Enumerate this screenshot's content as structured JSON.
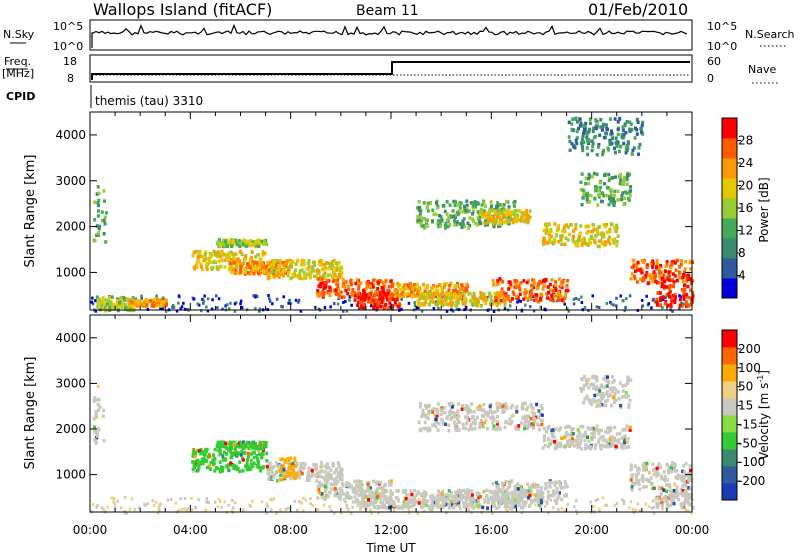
{
  "header": {
    "station": "Wallops Island (fitACF)",
    "beam": "Beam 11",
    "date": "01/Feb/2010"
  },
  "top_panels": {
    "nsky_label": "N.Sky",
    "nsky_ticks": [
      "10^5",
      "10^0"
    ],
    "nsearch_label": "N.Search",
    "nsearch_ticks": [
      "10^5",
      "10^0"
    ],
    "freq_label": "Freq.",
    "freq_unit": "[MHz]",
    "freq_ticks": [
      "18",
      "8"
    ],
    "nave_label": "Nave",
    "nave_ticks": [
      "60",
      "0"
    ],
    "cpid_label": "CPID",
    "cpid_value": "themis (tau) 3310"
  },
  "chart_data": [
    {
      "type": "heatmap",
      "name": "power",
      "ylabel": "Slant Range [km]",
      "yticks": [
        "4000",
        "3000",
        "2000",
        "1000"
      ],
      "ylim": [
        180,
        4500
      ],
      "colorbar": {
        "label": "Power [dB]",
        "ticks": [
          "28",
          "24",
          "20",
          "16",
          "12",
          "8",
          "4"
        ],
        "colors": [
          "#0000dd",
          "#2d5aa0",
          "#3a8a70",
          "#44aa55",
          "#99cc33",
          "#e6c800",
          "#ff9900",
          "#ff5a00",
          "#ff0000"
        ]
      },
      "regions": [
        {
          "t": [
            0.1,
            0.6
          ],
          "r": [
            1700,
            3000
          ],
          "level": 3
        },
        {
          "t": [
            0.2,
            1.8
          ],
          "r": [
            200,
            500
          ],
          "level": 4
        },
        {
          "t": [
            1.5,
            3.0
          ],
          "r": [
            300,
            450
          ],
          "level": 6
        },
        {
          "t": [
            4.0,
            7.0
          ],
          "r": [
            1100,
            1500
          ],
          "level": 5
        },
        {
          "t": [
            5.5,
            8.0
          ],
          "r": [
            1000,
            1300
          ],
          "level": 6
        },
        {
          "t": [
            5.0,
            7.0
          ],
          "r": [
            1600,
            1750
          ],
          "level": 4
        },
        {
          "t": [
            7.0,
            10.0
          ],
          "r": [
            900,
            1300
          ],
          "level": 5
        },
        {
          "t": [
            9.0,
            12.0
          ],
          "r": [
            500,
            900
          ],
          "level": 7
        },
        {
          "t": [
            10.5,
            12.3
          ],
          "r": [
            250,
            600
          ],
          "level": 8
        },
        {
          "t": [
            12.0,
            15.0
          ],
          "r": [
            500,
            800
          ],
          "level": 6
        },
        {
          "t": [
            13.0,
            16.5
          ],
          "r": [
            300,
            600
          ],
          "level": 5
        },
        {
          "t": [
            16.0,
            19.0
          ],
          "r": [
            400,
            900
          ],
          "level": 7
        },
        {
          "t": [
            13.0,
            17.0
          ],
          "r": [
            2000,
            2600
          ],
          "level": 3
        },
        {
          "t": [
            15.5,
            17.5
          ],
          "r": [
            2100,
            2400
          ],
          "level": 5
        },
        {
          "t": [
            18.0,
            21.0
          ],
          "r": [
            1600,
            2100
          ],
          "level": 5
        },
        {
          "t": [
            19.5,
            21.5
          ],
          "r": [
            2500,
            3200
          ],
          "level": 3
        },
        {
          "t": [
            19.0,
            22.0
          ],
          "r": [
            3600,
            4400
          ],
          "level": 2
        },
        {
          "t": [
            21.5,
            24.0
          ],
          "r": [
            800,
            1300
          ],
          "level": 7
        },
        {
          "t": [
            22.5,
            24.0
          ],
          "r": [
            300,
            900
          ],
          "level": 8
        }
      ]
    },
    {
      "type": "heatmap",
      "name": "velocity",
      "ylabel": "Slant Range [km]",
      "xlabel": "Time UT",
      "xticks": [
        "00:00",
        "04:00",
        "08:00",
        "12:00",
        "16:00",
        "20:00",
        "00:00"
      ],
      "yticks": [
        "4000",
        "3000",
        "2000",
        "1000"
      ],
      "ylim": [
        180,
        4500
      ],
      "colorbar": {
        "label": "Velocity [m s",
        "label_exp": "-1",
        "label_end": "]",
        "ticks": [
          "200",
          "100",
          "50",
          "15",
          "-15",
          "-50",
          "-100",
          "-200"
        ],
        "colors": [
          "#1a3ab8",
          "#2d5aa0",
          "#3a8a70",
          "#33cc33",
          "#88dd44",
          "#c8c8be",
          "#f0d080",
          "#ffaa00",
          "#ff6600",
          "#ff0000"
        ]
      },
      "regions": [
        {
          "t": [
            0.1,
            0.6
          ],
          "r": [
            1700,
            3000
          ],
          "color": 5
        },
        {
          "t": [
            4.0,
            7.0
          ],
          "r": [
            1100,
            1600
          ],
          "color": 3
        },
        {
          "t": [
            5.0,
            7.0
          ],
          "r": [
            1600,
            1750
          ],
          "color": 3
        },
        {
          "t": [
            7.0,
            10.0
          ],
          "r": [
            900,
            1300
          ],
          "color": 5
        },
        {
          "t": [
            7.5,
            8.2
          ],
          "r": [
            900,
            1400
          ],
          "color": 7
        },
        {
          "t": [
            9.0,
            12.0
          ],
          "r": [
            500,
            900
          ],
          "color": 5
        },
        {
          "t": [
            10.5,
            18.0
          ],
          "r": [
            300,
            700
          ],
          "color": 5
        },
        {
          "t": [
            16.0,
            19.0
          ],
          "r": [
            400,
            900
          ],
          "color": 5
        },
        {
          "t": [
            13.0,
            18.0
          ],
          "r": [
            2000,
            2600
          ],
          "color": 5
        },
        {
          "t": [
            18.0,
            21.5
          ],
          "r": [
            1600,
            2100
          ],
          "color": 5
        },
        {
          "t": [
            19.5,
            21.5
          ],
          "r": [
            2500,
            3200
          ],
          "color": 5
        },
        {
          "t": [
            21.5,
            24.0
          ],
          "r": [
            700,
            1300
          ],
          "color": 5
        },
        {
          "t": [
            22.5,
            24.0
          ],
          "r": [
            300,
            700
          ],
          "color": 5
        }
      ]
    }
  ]
}
